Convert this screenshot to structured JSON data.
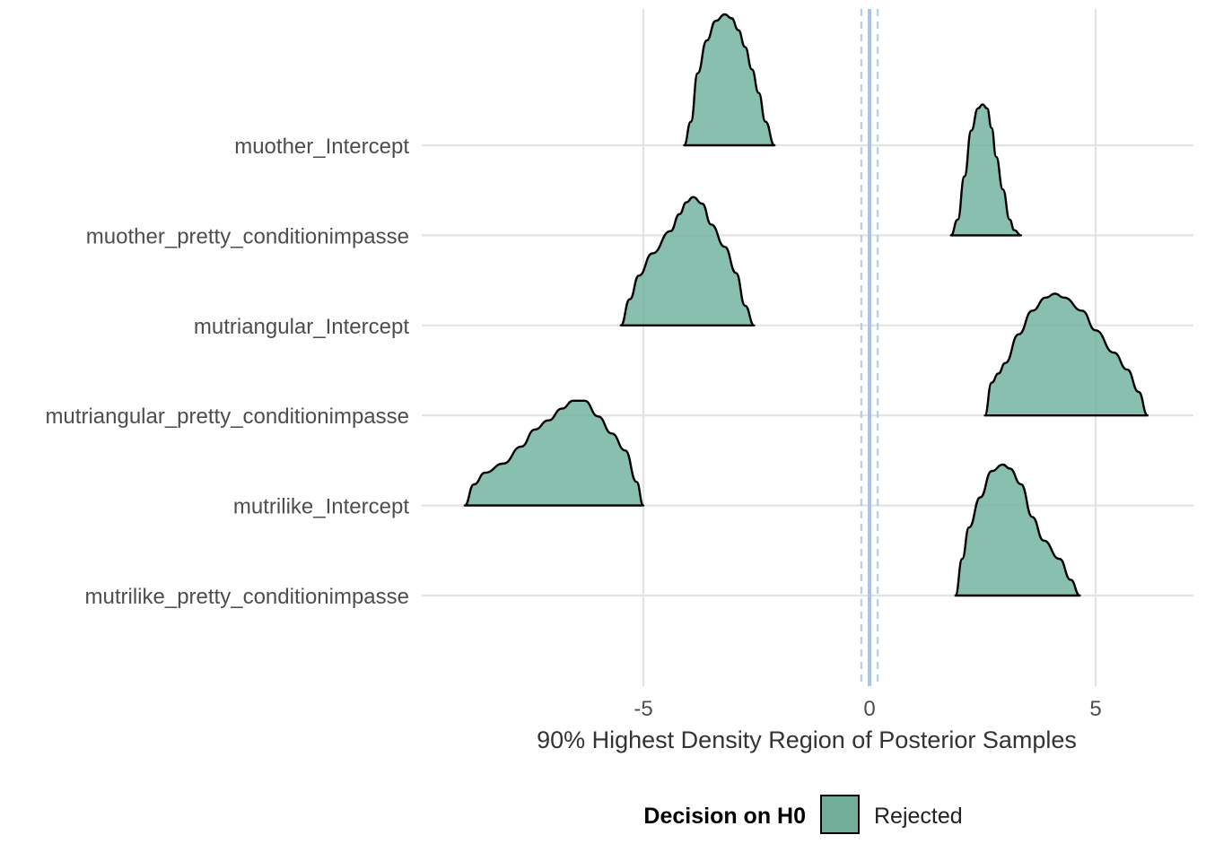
{
  "chart_data": {
    "type": "density_ridges",
    "xlabel": "90% Highest Density Region of Posterior Samples",
    "x_ticks": [
      "-5",
      "0",
      "5"
    ],
    "xlim": [
      -10,
      7.2
    ],
    "categories": [
      "muother_Intercept",
      "muother_pretty_conditionimpasse",
      "mutriangular_Intercept",
      "mutriangular_pretty_conditionimpasse",
      "mutrilike_Intercept",
      "mutrilike_pretty_conditionimpasse"
    ],
    "reference_lines": {
      "solid_x": 0,
      "dashed_x": [
        -0.18,
        0.18
      ],
      "color": "#a8c4ea"
    },
    "fill_color": "#6fb19c",
    "densities": [
      {
        "name": "muother_Intercept",
        "x": [
          -4.1,
          -3.95,
          -3.8,
          -3.6,
          -3.4,
          -3.2,
          -3.05,
          -2.9,
          -2.75,
          -2.6,
          -2.45,
          -2.3,
          -2.1
        ],
        "y": [
          0,
          0.18,
          0.55,
          0.8,
          0.95,
          1.0,
          0.97,
          0.88,
          0.75,
          0.58,
          0.4,
          0.18,
          0
        ]
      },
      {
        "name": "muother_pretty_conditionimpasse",
        "x": [
          1.8,
          1.95,
          2.1,
          2.25,
          2.4,
          2.5,
          2.6,
          2.7,
          2.8,
          2.95,
          3.1,
          3.2,
          3.35
        ],
        "y": [
          0,
          0.12,
          0.45,
          0.8,
          0.97,
          1.0,
          0.97,
          0.82,
          0.6,
          0.35,
          0.12,
          0.04,
          0
        ]
      },
      {
        "name": "mutriangular_Intercept",
        "x": [
          -5.5,
          -5.3,
          -5.1,
          -4.8,
          -4.4,
          -4.2,
          -4.05,
          -3.9,
          -3.7,
          -3.5,
          -3.2,
          -2.95,
          -2.75,
          -2.55
        ],
        "y": [
          0,
          0.2,
          0.38,
          0.55,
          0.72,
          0.85,
          0.94,
          0.98,
          0.93,
          0.77,
          0.6,
          0.4,
          0.15,
          0
        ]
      },
      {
        "name": "mutriangular_pretty_conditionimpasse",
        "x": [
          2.55,
          2.7,
          2.85,
          3.0,
          3.3,
          3.6,
          3.9,
          4.1,
          4.3,
          4.7,
          5.0,
          5.4,
          5.7,
          5.95,
          6.15
        ],
        "y": [
          0,
          0.25,
          0.32,
          0.4,
          0.62,
          0.8,
          0.9,
          0.93,
          0.9,
          0.8,
          0.65,
          0.48,
          0.35,
          0.18,
          0
        ]
      },
      {
        "name": "mutrilike_Intercept",
        "x": [
          -8.95,
          -8.75,
          -8.5,
          -8.1,
          -7.7,
          -7.4,
          -7.1,
          -6.8,
          -6.55,
          -6.3,
          -6.0,
          -5.7,
          -5.4,
          -5.15,
          -5.0
        ],
        "y": [
          0,
          0.16,
          0.25,
          0.32,
          0.45,
          0.58,
          0.65,
          0.74,
          0.8,
          0.8,
          0.68,
          0.55,
          0.42,
          0.18,
          0
        ]
      },
      {
        "name": "mutrilike_pretty_conditionimpasse",
        "x": [
          1.9,
          2.05,
          2.2,
          2.45,
          2.7,
          2.95,
          3.1,
          3.35,
          3.6,
          3.85,
          4.2,
          4.45,
          4.65
        ],
        "y": [
          0,
          0.28,
          0.52,
          0.75,
          0.95,
          1.0,
          0.97,
          0.85,
          0.6,
          0.42,
          0.28,
          0.12,
          0
        ]
      }
    ]
  },
  "legend": {
    "title": "Decision on H0",
    "items": [
      {
        "label": "Rejected",
        "color": "#72ad9a"
      }
    ]
  }
}
